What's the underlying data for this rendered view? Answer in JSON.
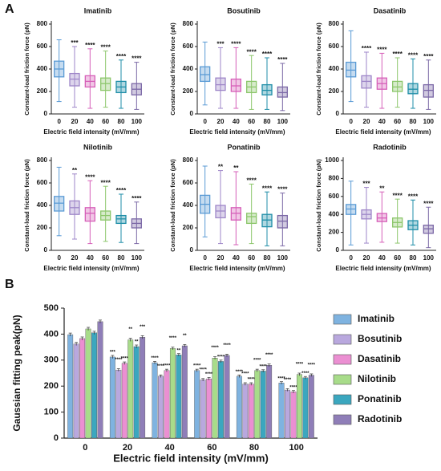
{
  "panel_labels": [
    "A",
    "B"
  ],
  "chart_data": [
    {
      "type": "box",
      "title": "Imatinib",
      "xlabel": "Electric field intensity (mV/mm)",
      "ylabel": "Constant-load friction force (pN)",
      "categories": [
        "0",
        "20",
        "40",
        "60",
        "80",
        "100"
      ],
      "colors": [
        "#5b9bd5",
        "#9e86c8",
        "#d65fb8",
        "#8cc66b",
        "#1f8ea8",
        "#7b68a6"
      ],
      "ylim": [
        0,
        800
      ],
      "yticks": [
        0,
        200,
        400,
        600,
        800
      ],
      "boxes": [
        {
          "min": 110,
          "q1": 330,
          "median": 400,
          "q3": 470,
          "max": 660
        },
        {
          "min": 60,
          "q1": 250,
          "median": 310,
          "q3": 360,
          "max": 600
        },
        {
          "min": 50,
          "q1": 240,
          "median": 290,
          "q3": 340,
          "max": 580
        },
        {
          "min": 60,
          "q1": 210,
          "median": 270,
          "q3": 320,
          "max": 560
        },
        {
          "min": 50,
          "q1": 190,
          "median": 240,
          "q3": 290,
          "max": 480
        },
        {
          "min": 40,
          "q1": 170,
          "median": 220,
          "q3": 270,
          "max": 460
        }
      ],
      "annotations": [
        null,
        "***",
        "****",
        "****",
        "****",
        "****"
      ]
    },
    {
      "type": "box",
      "title": "Bosutinib",
      "xlabel": "Electric field intensity (mV/mm)",
      "ylabel": "Constant-load friction force (pN)",
      "categories": [
        "0",
        "20",
        "40",
        "60",
        "80",
        "100"
      ],
      "colors": [
        "#5b9bd5",
        "#9e86c8",
        "#d65fb8",
        "#8cc66b",
        "#1f8ea8",
        "#7b68a6"
      ],
      "ylim": [
        0,
        800
      ],
      "yticks": [
        0,
        200,
        400,
        600,
        800
      ],
      "boxes": [
        {
          "min": 80,
          "q1": 290,
          "median": 350,
          "q3": 420,
          "max": 640
        },
        {
          "min": 50,
          "q1": 210,
          "median": 260,
          "q3": 320,
          "max": 590
        },
        {
          "min": 50,
          "q1": 200,
          "median": 250,
          "q3": 310,
          "max": 590
        },
        {
          "min": 40,
          "q1": 190,
          "median": 240,
          "q3": 290,
          "max": 520
        },
        {
          "min": 40,
          "q1": 170,
          "median": 210,
          "q3": 260,
          "max": 500
        },
        {
          "min": 30,
          "q1": 150,
          "median": 190,
          "q3": 240,
          "max": 450
        }
      ],
      "annotations": [
        null,
        "***",
        "****",
        "****",
        "****",
        "****"
      ]
    },
    {
      "type": "box",
      "title": "Dasatinib",
      "xlabel": "Electric field intensity (mV/mm)",
      "ylabel": "Constant-load friction force (pN)",
      "categories": [
        "0",
        "20",
        "40",
        "60",
        "80",
        "100"
      ],
      "colors": [
        "#5b9bd5",
        "#9e86c8",
        "#d65fb8",
        "#8cc66b",
        "#1f8ea8",
        "#7b68a6"
      ],
      "ylim": [
        0,
        800
      ],
      "yticks": [
        0,
        200,
        400,
        600,
        800
      ],
      "boxes": [
        {
          "min": 110,
          "q1": 330,
          "median": 390,
          "q3": 460,
          "max": 740
        },
        {
          "min": 60,
          "q1": 230,
          "median": 290,
          "q3": 340,
          "max": 550
        },
        {
          "min": 50,
          "q1": 220,
          "median": 270,
          "q3": 320,
          "max": 540
        },
        {
          "min": 60,
          "q1": 200,
          "median": 240,
          "q3": 290,
          "max": 500
        },
        {
          "min": 50,
          "q1": 180,
          "median": 220,
          "q3": 270,
          "max": 490
        },
        {
          "min": 40,
          "q1": 150,
          "median": 210,
          "q3": 260,
          "max": 480
        }
      ],
      "annotations": [
        null,
        "****",
        "****",
        "****",
        "****",
        "****"
      ]
    },
    {
      "type": "box",
      "title": "Nilotinib",
      "xlabel": "Electric field intensity (mV/mm)",
      "ylabel": "Constant-load friction force (pN)",
      "categories": [
        "0",
        "20",
        "40",
        "60",
        "80",
        "100"
      ],
      "colors": [
        "#5b9bd5",
        "#9e86c8",
        "#d65fb8",
        "#8cc66b",
        "#1f8ea8",
        "#7b68a6"
      ],
      "ylim": [
        0,
        800
      ],
      "yticks": [
        0,
        200,
        400,
        600,
        800
      ],
      "boxes": [
        {
          "min": 130,
          "q1": 350,
          "median": 420,
          "q3": 480,
          "max": 740
        },
        {
          "min": 100,
          "q1": 320,
          "median": 380,
          "q3": 440,
          "max": 680
        },
        {
          "min": 60,
          "q1": 260,
          "median": 330,
          "q3": 380,
          "max": 620
        },
        {
          "min": 80,
          "q1": 270,
          "median": 310,
          "q3": 350,
          "max": 570
        },
        {
          "min": 70,
          "q1": 240,
          "median": 280,
          "q3": 310,
          "max": 500
        },
        {
          "min": 60,
          "q1": 200,
          "median": 240,
          "q3": 280,
          "max": 430
        }
      ],
      "annotations": [
        null,
        "**",
        "****",
        "****",
        "****",
        "****"
      ]
    },
    {
      "type": "box",
      "title": "Ponatinib",
      "xlabel": "Electric field intensity (mV/mm)",
      "ylabel": "Constant-load friction force (pN)",
      "categories": [
        "0",
        "20",
        "40",
        "60",
        "80",
        "100"
      ],
      "colors": [
        "#5b9bd5",
        "#9e86c8",
        "#d65fb8",
        "#8cc66b",
        "#1f8ea8",
        "#7b68a6"
      ],
      "ylim": [
        0,
        800
      ],
      "yticks": [
        0,
        200,
        400,
        600,
        800
      ],
      "boxes": [
        {
          "min": 120,
          "q1": 330,
          "median": 410,
          "q3": 490,
          "max": 750
        },
        {
          "min": 60,
          "q1": 290,
          "median": 350,
          "q3": 400,
          "max": 710
        },
        {
          "min": 50,
          "q1": 270,
          "median": 330,
          "q3": 380,
          "max": 700
        },
        {
          "min": 60,
          "q1": 240,
          "median": 300,
          "q3": 330,
          "max": 590
        },
        {
          "min": 40,
          "q1": 210,
          "median": 270,
          "q3": 320,
          "max": 520
        },
        {
          "min": 40,
          "q1": 200,
          "median": 260,
          "q3": 310,
          "max": 510
        }
      ],
      "annotations": [
        null,
        "**",
        "**",
        "****",
        "****",
        "****"
      ]
    },
    {
      "type": "box",
      "title": "Radotinib",
      "xlabel": "Electric field intensity (mV/mm)",
      "ylabel": "Constant-load friction force (pN)",
      "categories": [
        "0",
        "20",
        "40",
        "60",
        "80",
        "100"
      ],
      "colors": [
        "#5b9bd5",
        "#9e86c8",
        "#d65fb8",
        "#8cc66b",
        "#1f8ea8",
        "#7b68a6"
      ],
      "ylim": [
        0,
        1000
      ],
      "yticks": [
        0,
        200,
        400,
        600,
        800,
        1000
      ],
      "boxes": [
        {
          "min": 60,
          "q1": 400,
          "median": 460,
          "q3": 510,
          "max": 770
        },
        {
          "min": 80,
          "q1": 350,
          "median": 400,
          "q3": 450,
          "max": 700
        },
        {
          "min": 90,
          "q1": 320,
          "median": 360,
          "q3": 410,
          "max": 650
        },
        {
          "min": 80,
          "q1": 260,
          "median": 310,
          "q3": 360,
          "max": 570
        },
        {
          "min": 60,
          "q1": 230,
          "median": 280,
          "q3": 330,
          "max": 560
        },
        {
          "min": 30,
          "q1": 190,
          "median": 240,
          "q3": 280,
          "max": 480
        }
      ],
      "annotations": [
        null,
        "***",
        "**",
        "****",
        "****",
        "****"
      ]
    },
    {
      "type": "bar",
      "xlabel": "Electric field intensity (mV/mm)",
      "ylabel": "Gaussian fitting peak(pN)",
      "categories": [
        "0",
        "20",
        "40",
        "60",
        "80",
        "100"
      ],
      "ylim": [
        0,
        500
      ],
      "yticks": [
        0,
        100,
        200,
        300,
        400,
        500
      ],
      "legend": "right",
      "series": [
        {
          "name": "Imatinib",
          "color": "#7fb3e0",
          "values": [
            398,
            312,
            290,
            260,
            238,
            212
          ],
          "errors": [
            6,
            6,
            5,
            5,
            5,
            5
          ],
          "annotations": [
            null,
            "***",
            "****",
            "****",
            "****",
            "****"
          ]
        },
        {
          "name": "Bosutinib",
          "color": "#b9a8de",
          "values": [
            362,
            262,
            238,
            224,
            208,
            185
          ],
          "errors": [
            6,
            5,
            5,
            5,
            5,
            5
          ],
          "annotations": [
            null,
            "****",
            "****",
            "****",
            "****",
            "****"
          ]
        },
        {
          "name": "Dasatinib",
          "color": "#eb8fd2",
          "values": [
            383,
            288,
            260,
            228,
            208,
            178
          ],
          "errors": [
            6,
            5,
            5,
            5,
            5,
            5
          ],
          "annotations": [
            null,
            "****",
            "****",
            "****",
            "****",
            "****"
          ]
        },
        {
          "name": "Nilotinib",
          "color": "#a8dc8a",
          "values": [
            420,
            378,
            345,
            308,
            260,
            245
          ],
          "errors": [
            6,
            6,
            5,
            5,
            5,
            5
          ],
          "annotations": [
            null,
            "**",
            "****",
            "****",
            "****",
            "****"
          ]
        },
        {
          "name": "Ponatinib",
          "color": "#3ba7bf",
          "values": [
            405,
            352,
            320,
            295,
            258,
            232
          ],
          "errors": [
            6,
            6,
            5,
            5,
            5,
            5
          ],
          "annotations": [
            null,
            "**",
            "**",
            "****",
            "****",
            "****"
          ]
        },
        {
          "name": "Radotinib",
          "color": "#8f7eb8",
          "values": [
            448,
            388,
            355,
            318,
            280,
            242
          ],
          "errors": [
            6,
            6,
            5,
            5,
            5,
            5
          ],
          "annotations": [
            null,
            "***",
            "**",
            "****",
            "****",
            "****"
          ]
        }
      ]
    }
  ]
}
